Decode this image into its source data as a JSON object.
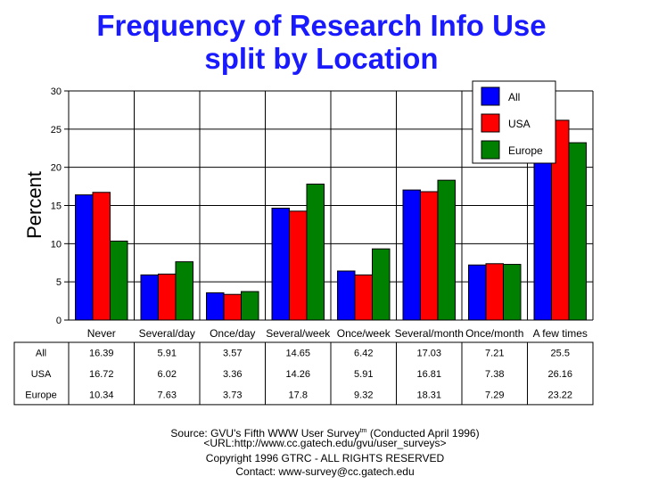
{
  "chart_data": {
    "type": "bar",
    "title": "Frequency of Research Info Use",
    "subtitle": "split by Location",
    "ylabel": "Percent",
    "xlabel": "",
    "ylim": [
      0,
      30
    ],
    "yticks": [
      0,
      5,
      10,
      15,
      20,
      25,
      30
    ],
    "grid": true,
    "legend_position": "top-right",
    "categories": [
      "Never",
      "Several/day",
      "Once/day",
      "Several/week",
      "Once/week",
      "Several/month",
      "Once/month",
      "A few times"
    ],
    "series": [
      {
        "name": "All",
        "color": "#0000ff",
        "values": [
          16.39,
          5.91,
          3.57,
          14.65,
          6.42,
          17.03,
          7.21,
          25.5
        ]
      },
      {
        "name": "USA",
        "color": "#ff0000",
        "values": [
          16.72,
          6.02,
          3.36,
          14.26,
          5.91,
          16.81,
          7.38,
          26.16
        ]
      },
      {
        "name": "Europe",
        "color": "#008000",
        "values": [
          10.34,
          7.63,
          3.73,
          17.8,
          9.32,
          18.31,
          7.29,
          23.22
        ]
      }
    ],
    "table": [
      {
        "label": "All",
        "cells": [
          "16.39",
          "5.91",
          "3.57",
          "14.65",
          "6.42",
          "17.03",
          "7.21",
          "25.5"
        ]
      },
      {
        "label": "USA",
        "cells": [
          "16.72",
          "6.02",
          "3.36",
          "14.26",
          "5.91",
          "16.81",
          "7.38",
          "26.16"
        ]
      },
      {
        "label": "Europe",
        "cells": [
          "10.34",
          "7.63",
          "3.73",
          "17.8",
          "9.32",
          "18.31",
          "7.29",
          "23.22"
        ]
      }
    ]
  },
  "footer": {
    "source_prefix": "Source: GVU's Fifth WWW User Survey",
    "source_sup": "tm",
    "source_suffix": "  (Conducted April 1996)",
    "url": "<URL:http://www.cc.gatech.edu/gvu/user_surveys>",
    "copyright": "Copyright 1996 GTRC -  ALL RIGHTS RESERVED",
    "contact": "Contact: www-survey@cc.gatech.edu"
  }
}
